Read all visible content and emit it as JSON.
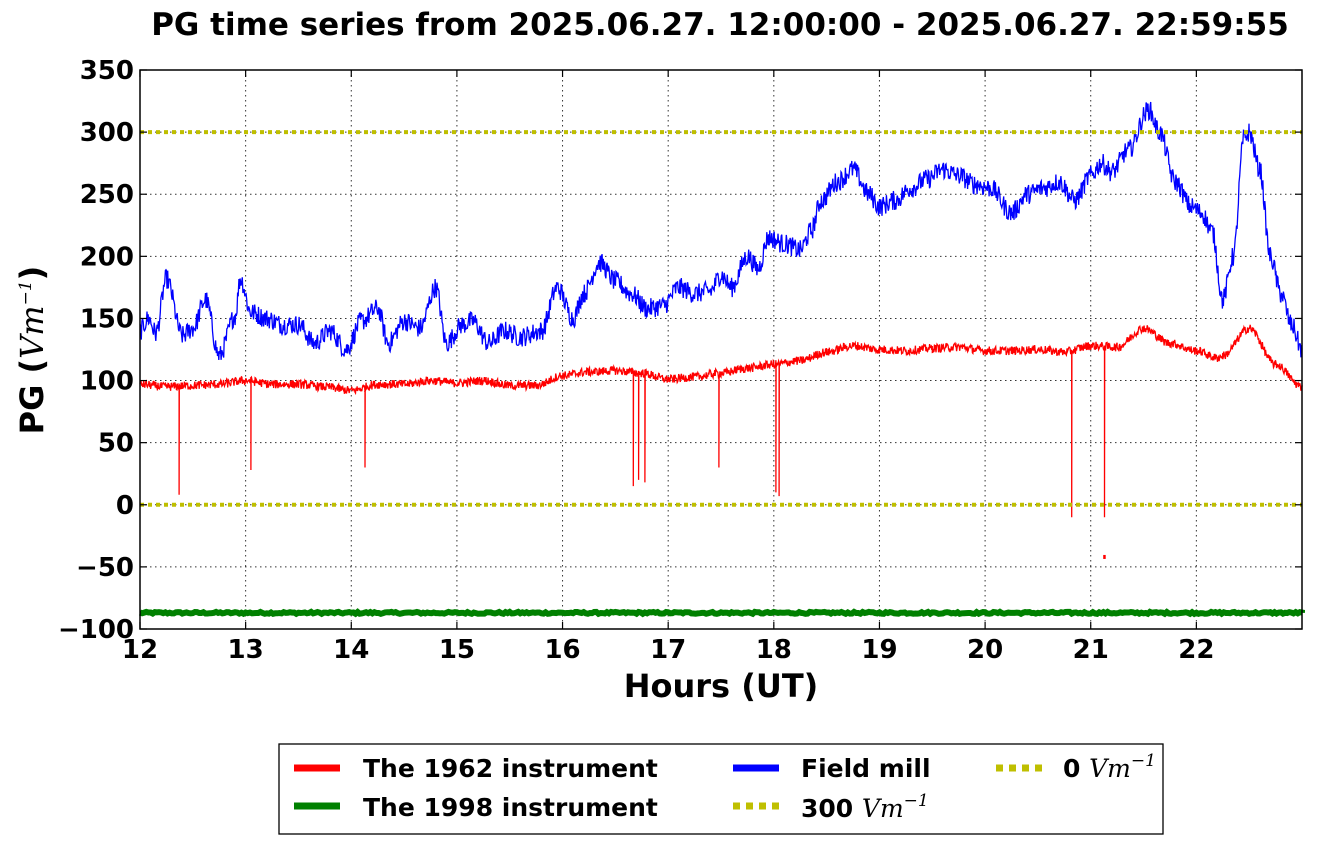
{
  "chart_data": {
    "type": "line",
    "title": "PG time series from 2025.06.27. 12:00:00 - 2025.06.27. 22:59:55",
    "xlabel": "Hours (UT)",
    "ylabel": "PG",
    "ylabel_unit": "Vm",
    "ylabel_unit_exp": "−1",
    "xlim": [
      12,
      23
    ],
    "ylim": [
      -100,
      350
    ],
    "grid": true,
    "legend_placement": "below",
    "xticks": [
      12,
      13,
      14,
      15,
      16,
      17,
      18,
      19,
      20,
      21,
      22
    ],
    "xtick_labels": [
      "12",
      "13",
      "14",
      "15",
      "16",
      "17",
      "18",
      "19",
      "20",
      "21",
      "22"
    ],
    "yticks": [
      -100,
      -50,
      0,
      50,
      100,
      150,
      200,
      250,
      300,
      350
    ],
    "ytick_labels": [
      "−100",
      "−50",
      "0",
      "50",
      "100",
      "150",
      "200",
      "250",
      "300",
      "350"
    ],
    "series": [
      {
        "name": "The 1962 instrument",
        "color": "#ff0000",
        "x": [
          12.0,
          12.25,
          12.5,
          12.75,
          13.0,
          13.25,
          13.5,
          13.75,
          14.0,
          14.25,
          14.5,
          14.75,
          15.0,
          15.25,
          15.5,
          15.75,
          16.0,
          16.25,
          16.5,
          16.75,
          17.0,
          17.25,
          17.5,
          17.75,
          18.0,
          18.25,
          18.5,
          18.75,
          19.0,
          19.25,
          19.5,
          19.75,
          20.0,
          20.25,
          20.5,
          20.75,
          21.0,
          21.25,
          21.5,
          21.75,
          22.0,
          22.2,
          22.25,
          22.5,
          22.75,
          23.0
        ],
        "y": [
          97,
          95,
          96,
          97,
          100,
          97,
          97,
          95,
          92,
          97,
          97,
          100,
          98,
          100,
          96,
          96,
          104,
          107,
          108,
          106,
          101,
          103,
          106,
          110,
          113,
          116,
          123,
          128,
          125,
          124,
          126,
          127,
          124,
          124,
          125,
          123,
          128,
          127,
          142,
          130,
          124,
          118,
          120,
          142,
          113,
          95
        ],
        "spikes": [
          {
            "x": 12.37,
            "y": 8
          },
          {
            "x": 13.05,
            "y": 28
          },
          {
            "x": 14.13,
            "y": 30
          },
          {
            "x": 16.67,
            "y": 15
          },
          {
            "x": 16.72,
            "y": 20
          },
          {
            "x": 16.78,
            "y": 18
          },
          {
            "x": 17.48,
            "y": 30
          },
          {
            "x": 18.02,
            "y": 10
          },
          {
            "x": 18.05,
            "y": 7
          },
          {
            "x": 20.82,
            "y": -10
          },
          {
            "x": 21.13,
            "y": -10
          }
        ],
        "outliers": [
          {
            "x": 21.13,
            "y": -42
          }
        ]
      },
      {
        "name": "The 1998 instrument",
        "color": "#008000",
        "x": [
          12,
          23
        ],
        "y": [
          -87,
          -87
        ]
      },
      {
        "name": "Field mill",
        "color": "#0000ff",
        "x": [
          12.0,
          12.08,
          12.15,
          12.25,
          12.4,
          12.5,
          12.62,
          12.75,
          12.9,
          12.95,
          13.05,
          13.2,
          13.35,
          13.5,
          13.65,
          13.8,
          13.95,
          14.1,
          14.25,
          14.35,
          14.5,
          14.65,
          14.8,
          14.9,
          15.05,
          15.15,
          15.3,
          15.45,
          15.6,
          15.8,
          15.95,
          16.1,
          16.2,
          16.35,
          16.5,
          16.65,
          16.8,
          16.95,
          17.1,
          17.25,
          17.4,
          17.5,
          17.6,
          17.75,
          17.85,
          17.95,
          18.1,
          18.25,
          18.35,
          18.45,
          18.6,
          18.75,
          18.9,
          19.0,
          19.15,
          19.3,
          19.45,
          19.6,
          19.75,
          19.9,
          20.05,
          20.25,
          20.4,
          20.55,
          20.7,
          20.85,
          21.0,
          21.1,
          21.2,
          21.35,
          21.55,
          21.65,
          21.8,
          21.95,
          22.05,
          22.15,
          22.25,
          22.35,
          22.45,
          22.5,
          22.6,
          22.7,
          22.8,
          22.9,
          23.0
        ],
        "y": [
          140,
          150,
          138,
          182,
          136,
          142,
          165,
          120,
          152,
          182,
          155,
          150,
          145,
          145,
          130,
          140,
          125,
          148,
          158,
          130,
          148,
          142,
          175,
          130,
          145,
          148,
          130,
          140,
          135,
          140,
          175,
          150,
          170,
          195,
          180,
          170,
          158,
          160,
          175,
          170,
          172,
          185,
          175,
          200,
          190,
          215,
          210,
          205,
          220,
          245,
          260,
          270,
          250,
          240,
          245,
          255,
          262,
          270,
          265,
          258,
          255,
          235,
          250,
          255,
          260,
          245,
          265,
          275,
          268,
          285,
          318,
          300,
          260,
          240,
          235,
          220,
          165,
          200,
          295,
          300,
          270,
          200,
          170,
          145,
          125
        ]
      },
      {
        "name": "300 Vm⁻¹",
        "color": "#bfbf00",
        "x": [
          12,
          23
        ],
        "y": [
          300,
          300
        ]
      },
      {
        "name": "0 Vm⁻¹",
        "color": "#bfbf00",
        "x": [
          12,
          23
        ],
        "y": [
          0,
          0
        ]
      }
    ],
    "legend": [
      {
        "label": "The 1962 instrument",
        "color": "#ff0000",
        "style": "solid"
      },
      {
        "label": "The 1998 instrument",
        "color": "#008000",
        "style": "solid"
      },
      {
        "label": "Field mill",
        "color": "#0000ff",
        "style": "solid"
      },
      {
        "label": "300",
        "unit": "Vm",
        "exp": "−1",
        "color": "#bfbf00",
        "style": "dotted"
      },
      {
        "label": "0",
        "unit": "Vm",
        "exp": "−1",
        "color": "#bfbf00",
        "style": "dotted"
      }
    ]
  }
}
